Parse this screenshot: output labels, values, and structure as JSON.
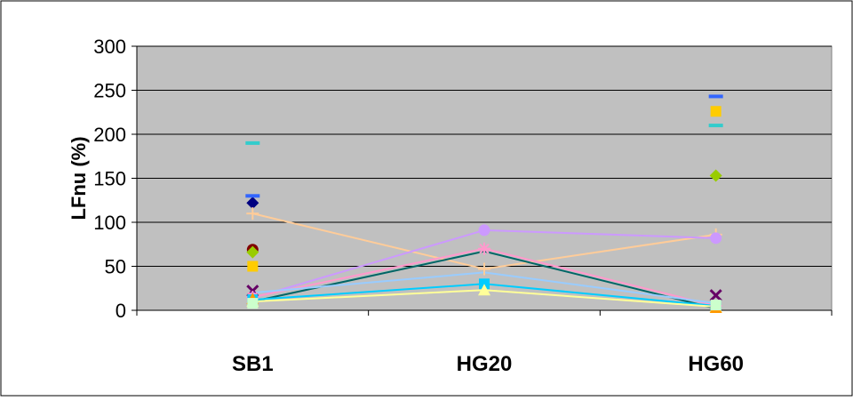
{
  "chart_data": {
    "type": "line",
    "title": "",
    "xlabel": "",
    "ylabel": "LFnu (%)",
    "categories": [
      "SB1",
      "HG20",
      "HG60"
    ],
    "ylim": [
      0,
      300
    ],
    "yticks": [
      0,
      50,
      100,
      150,
      200,
      250,
      300
    ],
    "grid": true,
    "legend": "none",
    "plot_background": "#c0c0c0",
    "series": [
      {
        "values": [
          122,
          null,
          null
        ],
        "color": "#000080",
        "marker": "diamond",
        "line": false
      },
      {
        "values": [
          190,
          null,
          210
        ],
        "color": "#33cccc",
        "marker": "dash",
        "line": false
      },
      {
        "values": [
          130,
          null,
          243
        ],
        "color": "#3366ff",
        "marker": "dash",
        "line": false
      },
      {
        "values": [
          69,
          null,
          null
        ],
        "color": "#800000",
        "marker": "circle",
        "line": false
      },
      {
        "values": [
          66,
          null,
          153
        ],
        "color": "#99cc00",
        "marker": "diamond",
        "line": false
      },
      {
        "values": [
          50,
          null,
          226
        ],
        "color": "#ffcc00",
        "marker": "square",
        "line": false
      },
      {
        "values": [
          22,
          null,
          17
        ],
        "color": "#660066",
        "marker": "x",
        "line": false
      },
      {
        "values": [
          110,
          47,
          86
        ],
        "color": "#ffcc99",
        "marker": "plus",
        "line": true
      },
      {
        "values": [
          14,
          91,
          82
        ],
        "color": "#cc99ff",
        "marker": "circle",
        "line": true
      },
      {
        "values": [
          15,
          70,
          5
        ],
        "color": "#ff99cc",
        "marker": "asterisk",
        "line": true
      },
      {
        "values": [
          10,
          67,
          2
        ],
        "color": "#006666",
        "marker": "none",
        "line": true
      },
      {
        "values": [
          20,
          43,
          8
        ],
        "color": "#99ccff",
        "marker": "none",
        "line": true
      },
      {
        "values": [
          12,
          30,
          5
        ],
        "color": "#00ccff",
        "marker": "square",
        "line": true
      },
      {
        "values": [
          10,
          23,
          4
        ],
        "color": "#ffff99",
        "marker": "triangle",
        "line": true
      },
      {
        "values": [
          13,
          null,
          3
        ],
        "color": "#ff9900",
        "marker": "triangle",
        "line": false
      },
      {
        "values": [
          8,
          null,
          6
        ],
        "color": "#ccffcc",
        "marker": "square",
        "line": false
      }
    ]
  }
}
